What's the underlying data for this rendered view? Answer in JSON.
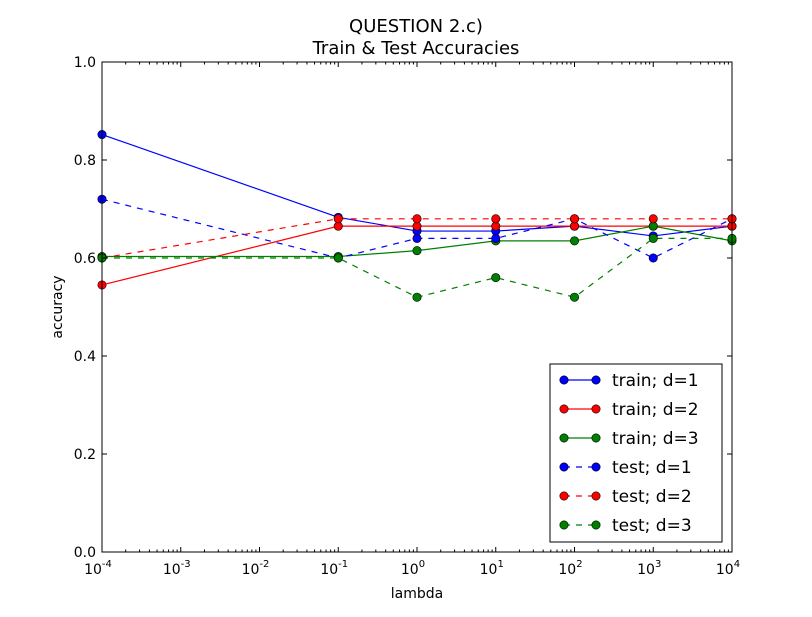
{
  "chart_data": {
    "type": "line",
    "title": "QUESTION 2.c)",
    "subtitle": "Train & Test Accuracies",
    "xlabel": "lambda",
    "ylabel": "accuracy",
    "xscale": "log",
    "xlim": [
      0.0001,
      10000
    ],
    "ylim": [
      0.0,
      1.0
    ],
    "grid": false,
    "legend_position": "lower-right",
    "x": [
      0.0001,
      0.1,
      1,
      10,
      100,
      1000,
      10000
    ],
    "x_ticks": [
      {
        "value": 0.0001,
        "base": "10",
        "exp": "-4"
      },
      {
        "value": 0.001,
        "base": "10",
        "exp": "-3"
      },
      {
        "value": 0.01,
        "base": "10",
        "exp": "-2"
      },
      {
        "value": 0.1,
        "base": "10",
        "exp": "-1"
      },
      {
        "value": 1,
        "base": "10",
        "exp": "0"
      },
      {
        "value": 10,
        "base": "10",
        "exp": "1"
      },
      {
        "value": 100,
        "base": "10",
        "exp": "2"
      },
      {
        "value": 1000,
        "base": "10",
        "exp": "3"
      },
      {
        "value": 10000,
        "base": "10",
        "exp": "4"
      }
    ],
    "y_ticks": [
      {
        "value": 0.0,
        "label": "0.0"
      },
      {
        "value": 0.2,
        "label": "0.2"
      },
      {
        "value": 0.4,
        "label": "0.4"
      },
      {
        "value": 0.6,
        "label": "0.6"
      },
      {
        "value": 0.8,
        "label": "0.8"
      },
      {
        "value": 1.0,
        "label": "1.0"
      }
    ],
    "series": [
      {
        "name": "train; d=1",
        "color": "#0000ff",
        "dash": false,
        "values": [
          0.852,
          0.683,
          0.655,
          0.655,
          0.665,
          0.645,
          0.665
        ]
      },
      {
        "name": "train; d=2",
        "color": "#ff0000",
        "dash": false,
        "values": [
          0.545,
          0.665,
          0.665,
          0.665,
          0.665,
          0.665,
          0.665
        ]
      },
      {
        "name": "train; d=3",
        "color": "#008000",
        "dash": false,
        "values": [
          0.603,
          0.603,
          0.615,
          0.635,
          0.635,
          0.665,
          0.635
        ]
      },
      {
        "name": "test; d=1",
        "color": "#0000ff",
        "dash": true,
        "values": [
          0.72,
          0.6,
          0.64,
          0.64,
          0.68,
          0.6,
          0.68
        ]
      },
      {
        "name": "test; d=2",
        "color": "#ff0000",
        "dash": true,
        "values": [
          0.6,
          0.68,
          0.68,
          0.68,
          0.68,
          0.68,
          0.68
        ]
      },
      {
        "name": "test; d=3",
        "color": "#008000",
        "dash": true,
        "values": [
          0.6,
          0.6,
          0.52,
          0.56,
          0.52,
          0.64,
          0.64
        ]
      }
    ]
  }
}
